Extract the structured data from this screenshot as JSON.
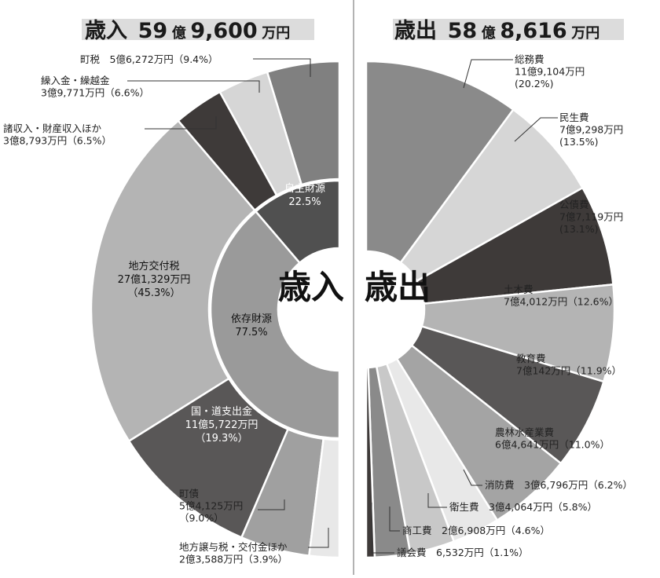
{
  "headers": {
    "revenue": {
      "prefix": "歳入",
      "num1": "59",
      "unit1": "億",
      "num2": "9,600",
      "unit2": "万円"
    },
    "expenditure": {
      "prefix": "歳出",
      "num1": "58",
      "unit1": "億",
      "num2": "8,616",
      "unit2": "万円"
    }
  },
  "center_labels": {
    "revenue": "歳入",
    "expenditure": "歳出"
  },
  "chart_data": [
    {
      "type": "pie",
      "title": "歳入 59億9,600万円",
      "rings": {
        "inner": [
          {
            "name": "自主財源",
            "percent_text": "22.5%",
            "value": 22.5,
            "color": "#505050"
          },
          {
            "name": "依存財源",
            "percent_text": "77.5%",
            "value": 77.5,
            "color": "#9a9a9a"
          }
        ],
        "outer": [
          {
            "label_lines": [
              "町税　5億6,272万円（9.4%）"
            ],
            "value": 9.4,
            "color": "#808080"
          },
          {
            "label_lines": [
              "繰入金・繰越金",
              "3億9,771万円（6.6%）"
            ],
            "value": 6.6,
            "color": "#d6d6d6"
          },
          {
            "label_lines": [
              "諸収入・財産収入ほか",
              "3億8,793万円（6.5%）"
            ],
            "value": 6.5,
            "color": "#3e3a39"
          },
          {
            "label_lines": [
              "地方交付税",
              "27億1,329万円",
              "（45.3%）"
            ],
            "value": 45.3,
            "color": "#b4b4b4"
          },
          {
            "label_lines": [
              "国・道支出金",
              "11億5,722万円",
              "（19.3%）"
            ],
            "value": 19.3,
            "color": "#595757"
          },
          {
            "label_lines": [
              "町債",
              "5億4,125万円",
              "（9.0%）"
            ],
            "value": 9.0,
            "color": "#a0a0a0"
          },
          {
            "label_lines": [
              "地方譲与税・交付金ほか",
              "2億3,588万円（3.9%）"
            ],
            "value": 3.9,
            "color": "#e8e8e8"
          }
        ]
      }
    },
    {
      "type": "pie",
      "title": "歳出 58億8,616万円",
      "slices": [
        {
          "label_lines": [
            "総務費",
            "11億9,104万円",
            "(20.2%)"
          ],
          "value": 20.2,
          "color": "#8a8a8a"
        },
        {
          "label_lines": [
            "民生費",
            "7億9,298万円",
            "(13.5%)"
          ],
          "value": 13.5,
          "color": "#d6d6d6"
        },
        {
          "label_lines": [
            "公債費",
            "7億7,119万円",
            "(13.1%)"
          ],
          "value": 13.1,
          "color": "#3e3a39"
        },
        {
          "label_lines": [
            "土木費",
            "7億4,012万円（12.6%）"
          ],
          "value": 12.6,
          "color": "#b4b4b4"
        },
        {
          "label_lines": [
            "教育費",
            "7億142万円（11.9%）"
          ],
          "value": 11.9,
          "color": "#595757"
        },
        {
          "label_lines": [
            "農林水産業費",
            "6億4,641万円（11.0%）"
          ],
          "value": 11.0,
          "color": "#a4a4a4"
        },
        {
          "label_lines": [
            "消防費　3億6,796万円（6.2%）"
          ],
          "value": 6.2,
          "color": "#e8e8e8"
        },
        {
          "label_lines": [
            "衛生費　3億4,064万円（5.8%）"
          ],
          "value": 5.8,
          "color": "#c8c8c8"
        },
        {
          "label_lines": [
            "商工費　2億6,908万円（4.6%）"
          ],
          "value": 4.6,
          "color": "#8a8a8a"
        },
        {
          "label_lines": [
            "議会費　6,532万円（1.1%）"
          ],
          "value": 1.1,
          "color": "#3e3a39"
        }
      ]
    }
  ]
}
